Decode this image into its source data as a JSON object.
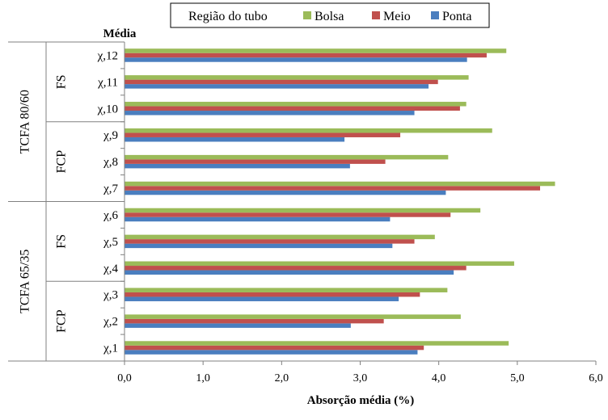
{
  "chart_data": {
    "type": "bar",
    "orientation": "horizontal",
    "header": "Média",
    "xlabel": "Absorção média (%)",
    "xlim": [
      0,
      6
    ],
    "xticks": [
      "0,0",
      "1,0",
      "2,0",
      "3,0",
      "4,0",
      "5,0",
      "6,0"
    ],
    "grid": false,
    "legend_position": "top",
    "legend_title": "Região do tubo",
    "categories": [
      "χ,1",
      "χ,2",
      "χ,3",
      "χ,4",
      "χ,5",
      "χ,6",
      "χ,7",
      "χ,8",
      "χ,9",
      "χ,10",
      "χ,11",
      "χ,12"
    ],
    "series": [
      {
        "name": "Ponta",
        "color": "#4a7ebf",
        "values": [
          3.73,
          2.88,
          3.49,
          4.19,
          3.41,
          3.38,
          4.09,
          2.87,
          2.8,
          3.69,
          3.87,
          4.36
        ]
      },
      {
        "name": "Meio",
        "color": "#c0504d",
        "values": [
          3.81,
          3.3,
          3.76,
          4.35,
          3.69,
          4.15,
          5.29,
          3.32,
          3.51,
          4.27,
          3.99,
          4.61
        ]
      },
      {
        "name": "Bolsa",
        "color": "#9bbb59",
        "values": [
          4.89,
          4.28,
          4.11,
          4.96,
          3.95,
          4.53,
          5.48,
          4.12,
          4.68,
          4.35,
          4.38,
          4.86
        ]
      }
    ],
    "groups_outer": [
      {
        "label": "TCFA 65/35",
        "from": 0,
        "to": 5
      },
      {
        "label": "TCFA 80/60",
        "from": 6,
        "to": 11
      }
    ],
    "groups_inner": [
      {
        "label": "FCP",
        "from": 0,
        "to": 2
      },
      {
        "label": "FS",
        "from": 3,
        "to": 5
      },
      {
        "label": "FCP",
        "from": 6,
        "to": 8
      },
      {
        "label": "FS",
        "from": 9,
        "to": 11
      }
    ]
  }
}
